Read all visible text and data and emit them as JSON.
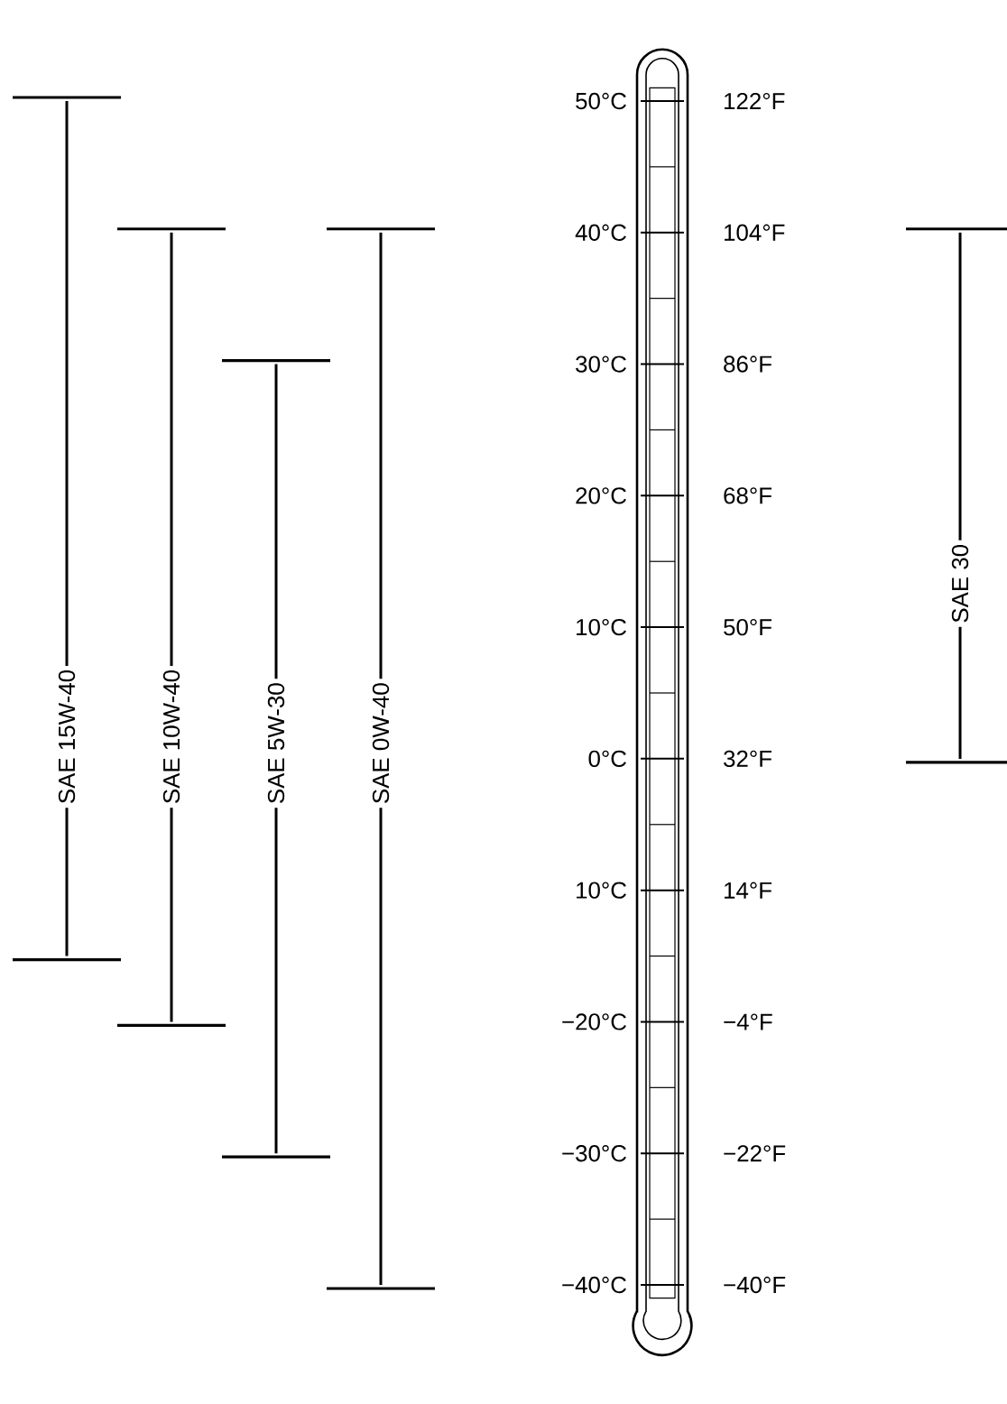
{
  "chart_data": [
    {
      "type": "bar",
      "categories": [
        "SAE 15W-40",
        "SAE 10W-40",
        "SAE 5W-30",
        "SAE 0W-40"
      ],
      "base": [
        -15,
        -20,
        -30,
        -40
      ],
      "values": [
        65,
        60,
        60,
        80
      ],
      "color": "#000000",
      "ylim": [
        -40,
        50
      ],
      "yticks": [
        {
          "value": 50,
          "label": "50°C"
        },
        {
          "value": 40,
          "label": "40°C"
        },
        {
          "value": 30,
          "label": "30°C"
        },
        {
          "value": 20,
          "label": "20°C"
        },
        {
          "value": 10,
          "label": "10°C"
        },
        {
          "value": 0,
          "label": "0°C"
        },
        {
          "value": -10,
          "label": "10°C"
        },
        {
          "value": -20,
          "label": "−20°C"
        },
        {
          "value": -30,
          "label": "−30°C"
        },
        {
          "value": -40,
          "label": "−40°C"
        }
      ]
    },
    {
      "type": "bar",
      "categories": [
        "SAE 30"
      ],
      "base": [
        32
      ],
      "values": [
        72
      ],
      "color": "#000000",
      "ylim": [
        -40,
        122
      ],
      "yticks": [
        {
          "value": 122,
          "label": "122°F"
        },
        {
          "value": 104,
          "label": "104°F"
        },
        {
          "value": 86,
          "label": "86°F"
        },
        {
          "value": 68,
          "label": "68°F"
        },
        {
          "value": 50,
          "label": "50°F"
        },
        {
          "value": 32,
          "label": "32°F"
        },
        {
          "value": 14,
          "label": "14°F"
        },
        {
          "value": -4,
          "label": "−4°F"
        },
        {
          "value": -22,
          "label": "−22°F"
        },
        {
          "value": -40,
          "label": "−40°F"
        }
      ]
    }
  ]
}
